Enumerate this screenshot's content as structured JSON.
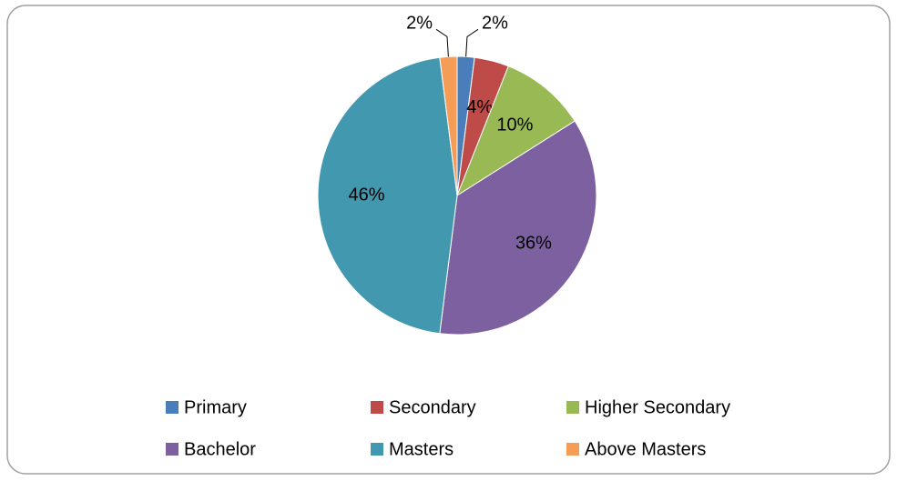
{
  "chart_data": {
    "type": "pie",
    "categories": [
      "Primary",
      "Secondary",
      "Higher Secondary",
      "Bachelor",
      "Masters",
      "Above Masters"
    ],
    "values": [
      2,
      4,
      10,
      36,
      46,
      2
    ],
    "value_labels": [
      "2%",
      "4%",
      "10%",
      "36%",
      "46%",
      "2%"
    ],
    "colors": [
      "#4a7ebb",
      "#be4b48",
      "#98b954",
      "#7d60a0",
      "#4198af",
      "#f59d56"
    ],
    "legend": "bottom"
  }
}
